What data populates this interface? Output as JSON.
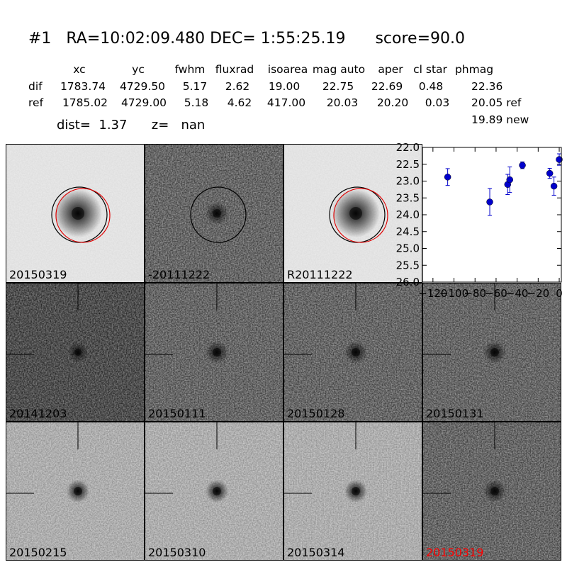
{
  "header": {
    "title": "#1   RA=10:02:09.480 DEC= 1:55:25.19      score=90.0",
    "columns": [
      "xc",
      "yc",
      "fwhm",
      "fluxrad",
      "isoarea",
      "mag auto",
      "aper",
      "cl star",
      "phmag"
    ],
    "rows": [
      {
        "label": "dif",
        "values": [
          "1783.74",
          "4729.50",
          "5.17",
          "2.62",
          "19.00",
          "22.75",
          "22.69",
          "0.48",
          "22.36"
        ]
      },
      {
        "label": "ref",
        "values": [
          "1785.02",
          "4729.00",
          "5.18",
          "4.62",
          "417.00",
          "20.03",
          "20.20",
          "0.03",
          "20.05 ref"
        ]
      }
    ],
    "extra_phmag": "19.89 new",
    "dist_line": "dist=  1.37      z=   nan"
  },
  "cutouts": [
    {
      "label": "20150319",
      "style": "smooth",
      "circles": "both",
      "label_color": "#000000"
    },
    {
      "label": "-20111222",
      "style": "noisy",
      "circles": "black",
      "label_color": "#000000"
    },
    {
      "label": "R20111222",
      "style": "smooth",
      "circles": "both",
      "label_color": "#000000"
    },
    {
      "label": "20141203",
      "style": "noisy-dark",
      "circles": "none",
      "label_color": "#000000"
    },
    {
      "label": "20150111",
      "style": "noisy",
      "circles": "none",
      "label_color": "#000000"
    },
    {
      "label": "20150128",
      "style": "noisy",
      "circles": "none",
      "label_color": "#000000"
    },
    {
      "label": "20150131",
      "style": "noisy",
      "circles": "none",
      "label_color": "#000000"
    },
    {
      "label": "20150215",
      "style": "light",
      "circles": "none",
      "label_color": "#000000"
    },
    {
      "label": "20150310",
      "style": "light",
      "circles": "none",
      "label_color": "#000000"
    },
    {
      "label": "20150314",
      "style": "light",
      "circles": "none",
      "label_color": "#000000"
    },
    {
      "label": "20150319",
      "style": "noisy",
      "circles": "none",
      "label_color": "#ff0000"
    }
  ],
  "chart_data": {
    "type": "scatter",
    "xlim": [
      -130,
      2
    ],
    "ylim": [
      26.0,
      22.0
    ],
    "y_inverted": true,
    "x_ticks": [
      -120,
      -100,
      -80,
      -60,
      -40,
      -20,
      0
    ],
    "x_tick_labels": [
      "−120",
      "−100",
      "−80",
      "−60",
      "−40",
      "−20",
      "0"
    ],
    "y_ticks": [
      22.0,
      22.5,
      23.0,
      23.5,
      24.0,
      24.5,
      25.0,
      25.5,
      26.0
    ],
    "y_tick_labels": [
      "22.0",
      "22.5",
      "23.0",
      "23.5",
      "24.0",
      "24.5",
      "25.0",
      "25.5",
      "26.0"
    ],
    "marker_color": "#0000cc",
    "points": [
      {
        "x": -106,
        "y": 22.88,
        "err": 0.25
      },
      {
        "x": -66,
        "y": 23.62,
        "err": 0.4
      },
      {
        "x": -49,
        "y": 23.1,
        "err": 0.3
      },
      {
        "x": -47,
        "y": 22.96,
        "err": 0.38
      },
      {
        "x": -35,
        "y": 22.53,
        "err": 0.1
      },
      {
        "x": -9,
        "y": 22.77,
        "err": 0.15
      },
      {
        "x": -5,
        "y": 23.15,
        "err": 0.27
      },
      {
        "x": 0,
        "y": 22.36,
        "err": 0.17
      }
    ],
    "grid": false,
    "title": "",
    "xlabel": "",
    "ylabel": ""
  }
}
